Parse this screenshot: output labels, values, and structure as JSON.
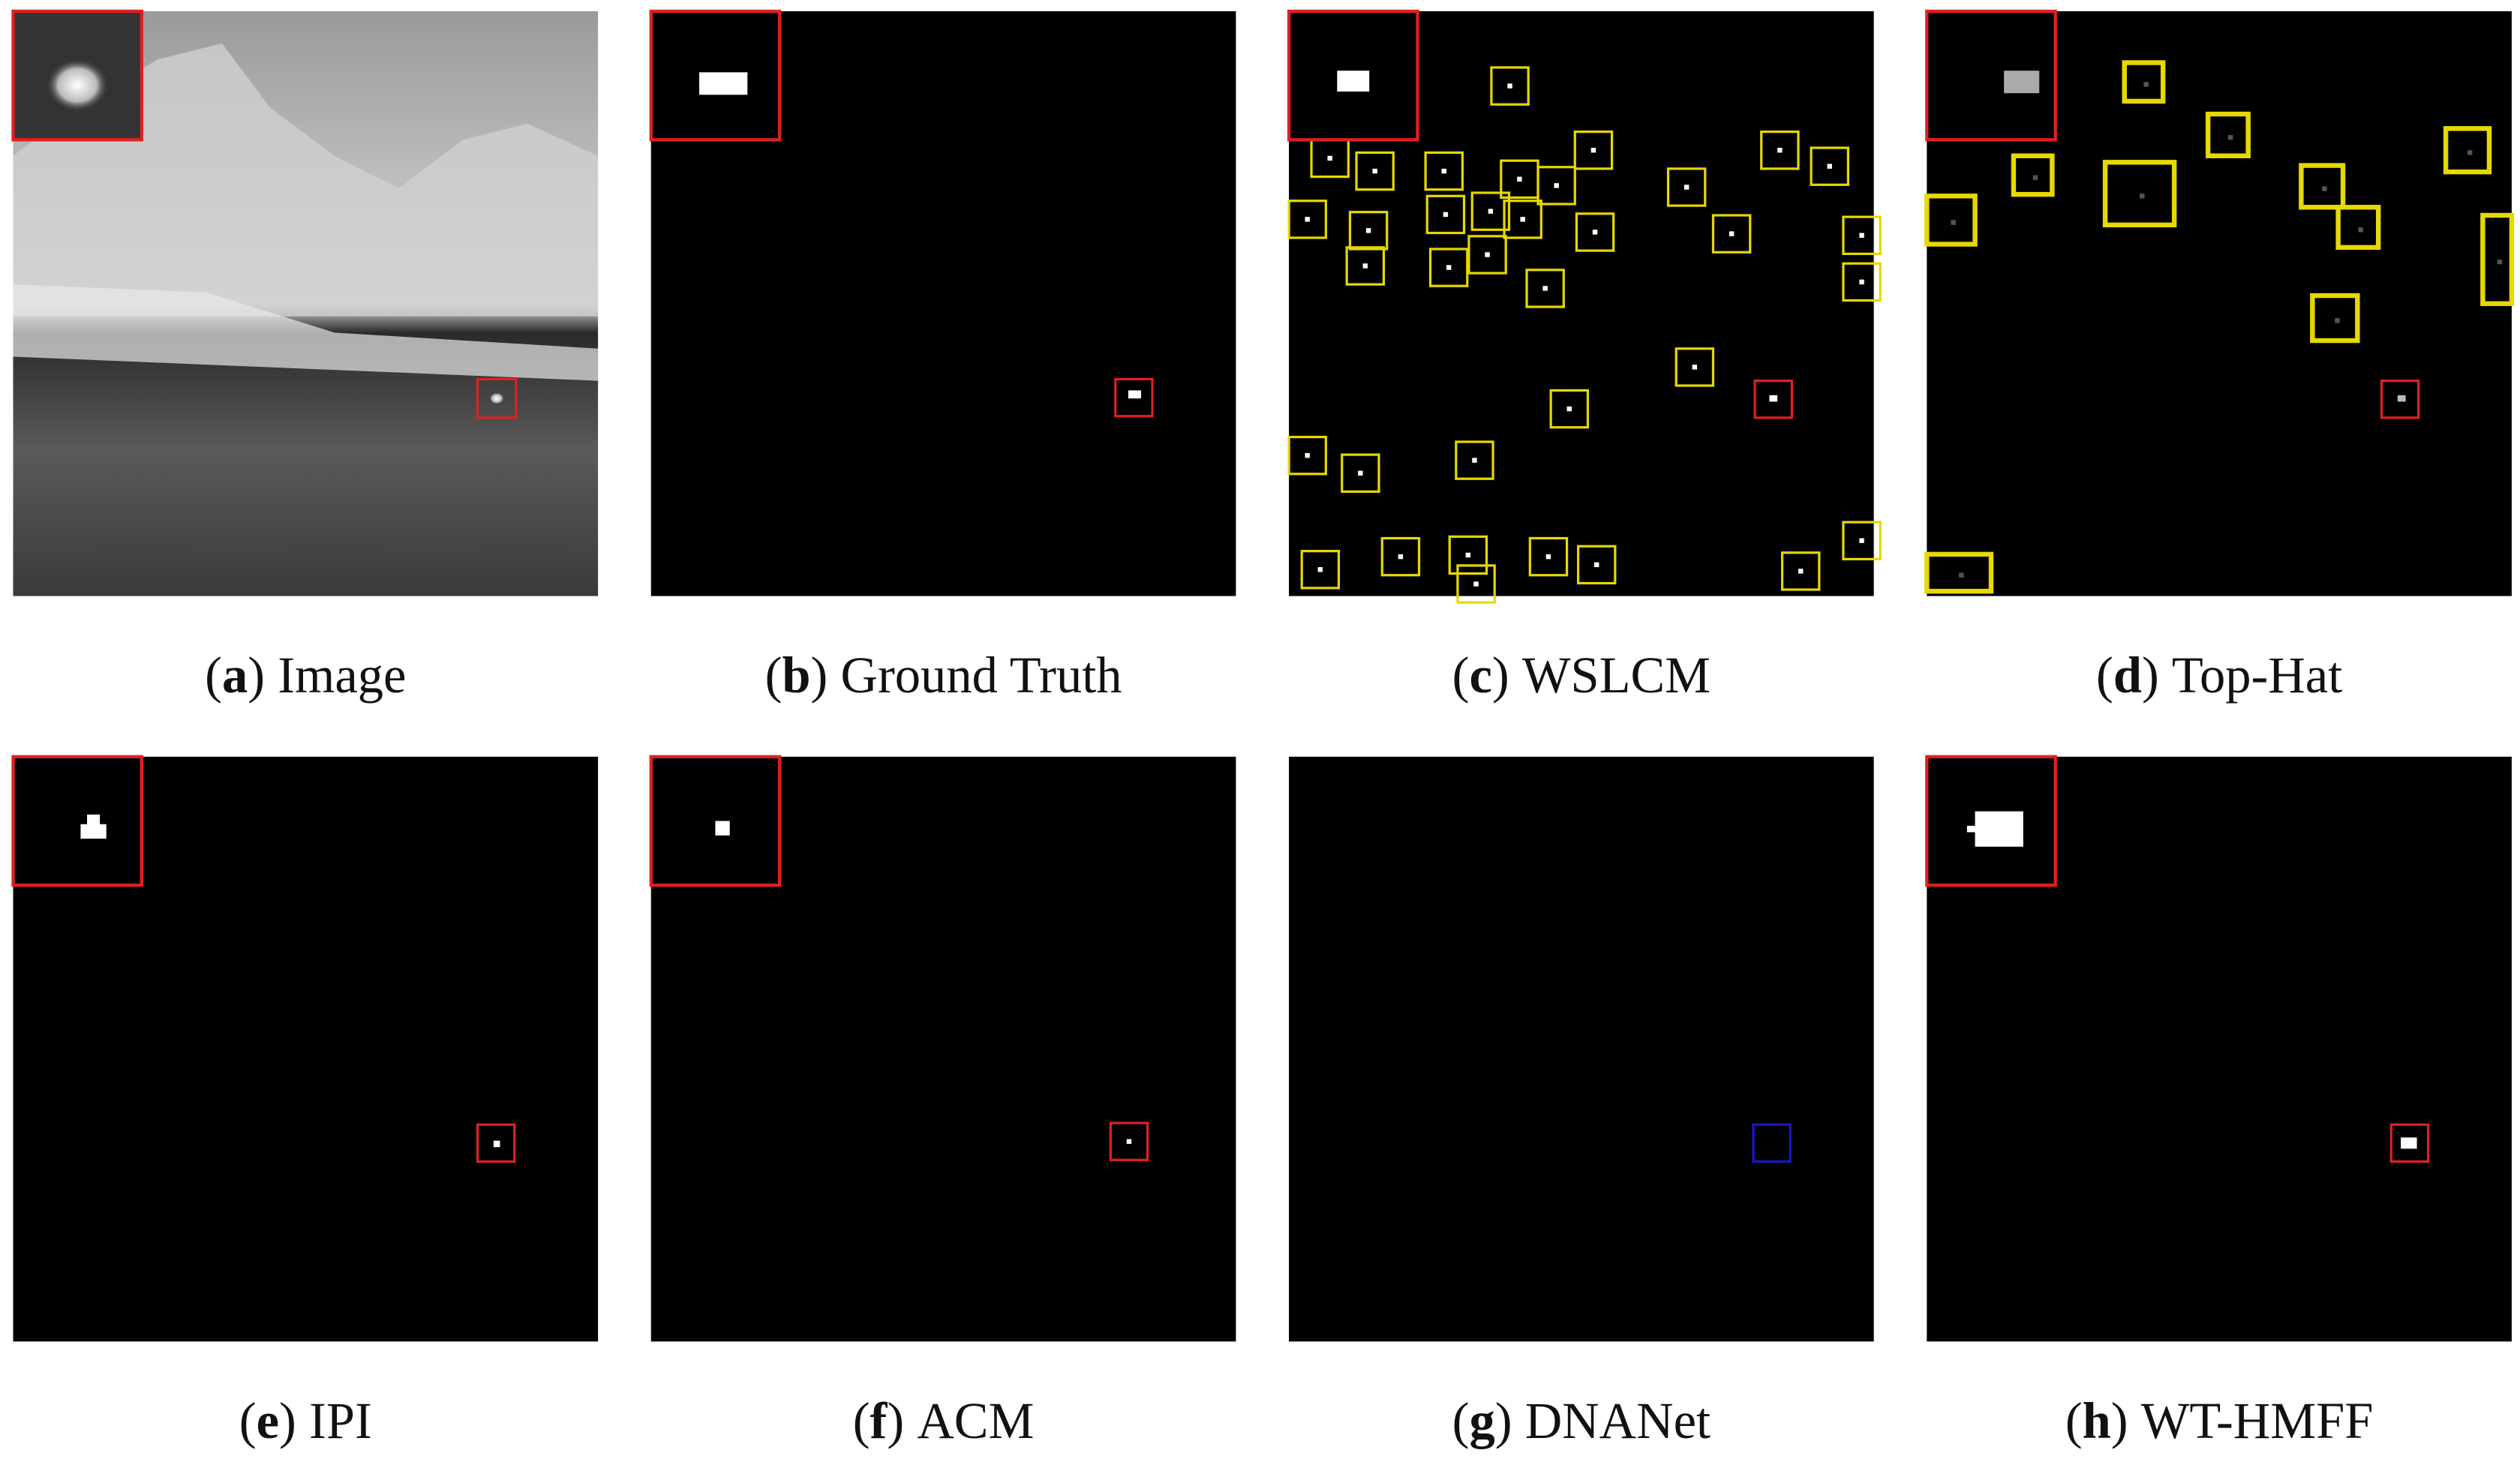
{
  "bracket_open": "(",
  "bracket_close": ")",
  "panels": [
    {
      "letter": "a",
      "text": "Image"
    },
    {
      "letter": "b",
      "text": "Ground Truth"
    },
    {
      "letter": "c",
      "text": "WSLCM"
    },
    {
      "letter": "d",
      "text": "Top-Hat"
    },
    {
      "letter": "e",
      "text": "IPI"
    },
    {
      "letter": "f",
      "text": "ACM"
    },
    {
      "letter": "g",
      "text": "DNANet"
    },
    {
      "letter": "h",
      "text": "WT-HMFF"
    }
  ]
}
